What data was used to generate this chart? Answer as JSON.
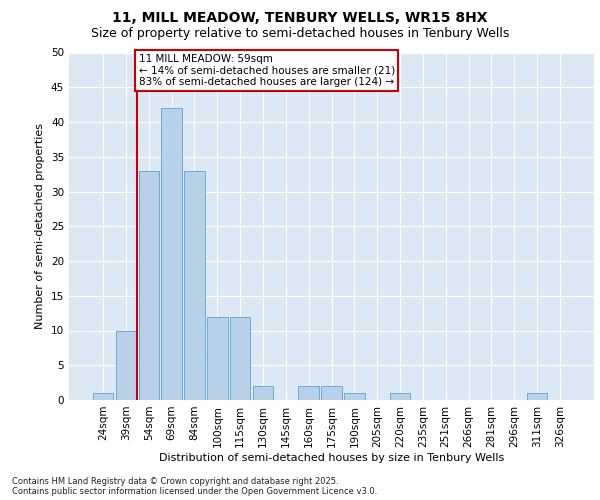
{
  "title_line1": "11, MILL MEADOW, TENBURY WELLS, WR15 8HX",
  "title_line2": "Size of property relative to semi-detached houses in Tenbury Wells",
  "xlabel": "Distribution of semi-detached houses by size in Tenbury Wells",
  "ylabel": "Number of semi-detached properties",
  "footnote": "Contains HM Land Registry data © Crown copyright and database right 2025.\nContains public sector information licensed under the Open Government Licence v3.0.",
  "categories": [
    "24sqm",
    "39sqm",
    "54sqm",
    "69sqm",
    "84sqm",
    "100sqm",
    "115sqm",
    "130sqm",
    "145sqm",
    "160sqm",
    "175sqm",
    "190sqm",
    "205sqm",
    "220sqm",
    "235sqm",
    "251sqm",
    "266sqm",
    "281sqm",
    "296sqm",
    "311sqm",
    "326sqm"
  ],
  "values": [
    1,
    10,
    33,
    42,
    33,
    12,
    12,
    2,
    0,
    2,
    2,
    1,
    0,
    1,
    0,
    0,
    0,
    0,
    0,
    1,
    0
  ],
  "bar_color": "#b8d0e8",
  "bar_edge_color": "#6aacd8",
  "bg_color": "#dce9f5",
  "grid_color": "#ffffff",
  "vline_index": 2,
  "vline_color": "#cc0000",
  "annotation_text": "11 MILL MEADOW: 59sqm\n← 14% of semi-detached houses are smaller (21)\n83% of semi-detached houses are larger (124) →",
  "annotation_box_edgecolor": "#cc0000",
  "ylim": [
    0,
    50
  ],
  "yticks": [
    0,
    5,
    10,
    15,
    20,
    25,
    30,
    35,
    40,
    45,
    50
  ],
  "title1_fontsize": 10,
  "title2_fontsize": 9,
  "axis_label_fontsize": 8,
  "tick_fontsize": 7.5,
  "annot_fontsize": 7.5,
  "footnote_fontsize": 6
}
